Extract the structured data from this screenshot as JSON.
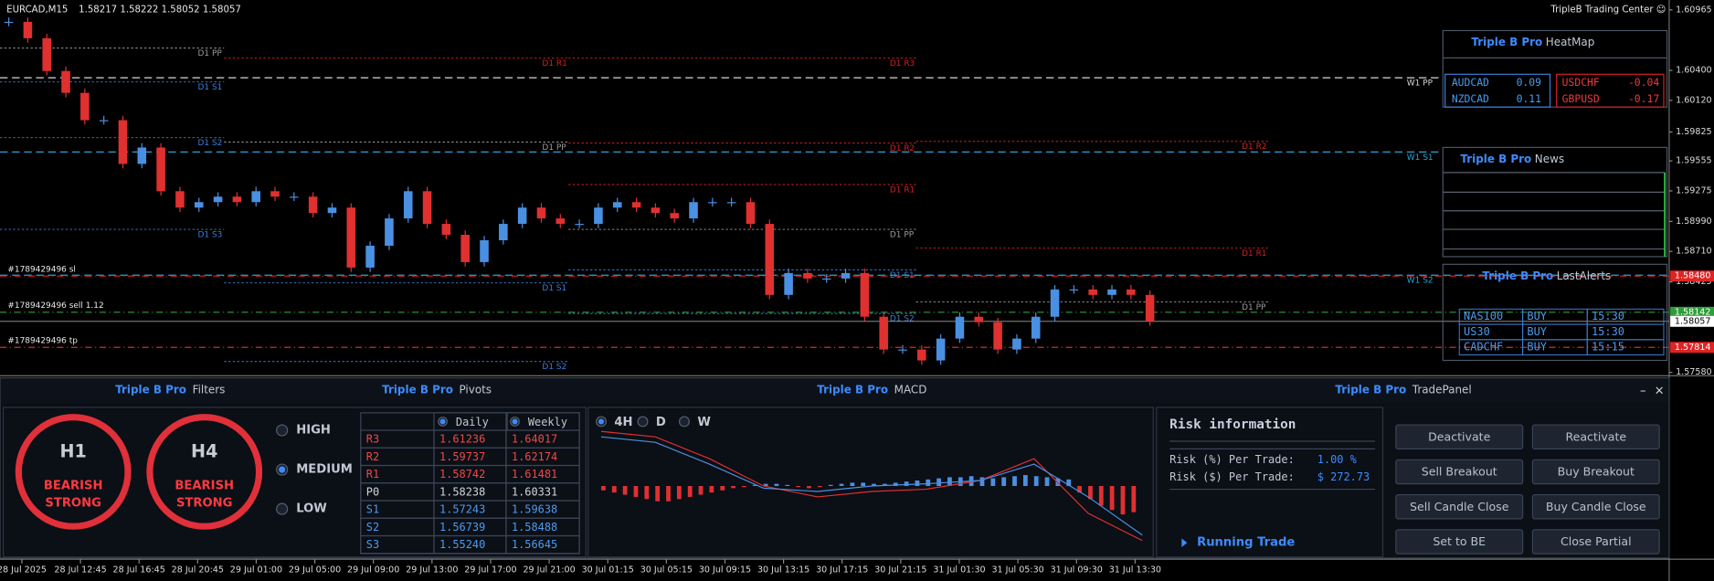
{
  "header": {
    "symbol": "EURCAD,M15",
    "ohlc": "1.58217 1.58222 1.58052 1.58057",
    "brand": "TripleB Trading Center ☺"
  },
  "price_axis": {
    "ylim": [
      1.5756,
      1.61057
    ],
    "ticks": [
      1.60965,
      {
        "value": 1.604,
        "label": "1.60400"
      },
      {
        "value": 1.6012,
        "label": "1.60120"
      },
      1.59825,
      1.59555,
      1.59275,
      {
        "value": 1.5899,
        "label": "1.58990"
      },
      {
        "value": 1.5871,
        "label": "1.58710"
      },
      1.58425,
      {
        "value": 1.5758,
        "label": "1.57580"
      }
    ],
    "tags": [
      {
        "value": 1.5848,
        "label": "1.58480",
        "color": "#e02424"
      },
      {
        "value": 1.58142,
        "label": "1.58142",
        "color": "#2e9e3a"
      },
      {
        "value": 1.58057,
        "label": "1.58057",
        "color": "#ffffff"
      },
      {
        "value": 1.57814,
        "label": "1.57814",
        "color": "#e02424"
      }
    ]
  },
  "time_axis": [
    "28 Jul 2025",
    "28 Jul 12:45",
    "28 Jul 16:45",
    "28 Jul 20:45",
    "29 Jul 01:00",
    "29 Jul 05:00",
    "29 Jul 09:00",
    "29 Jul 13:00",
    "29 Jul 17:00",
    "29 Jul 21:00",
    "30 Jul 01:15",
    "30 Jul 05:15",
    "30 Jul 09:15",
    "30 Jul 13:15",
    "30 Jul 17:15",
    "30 Jul 21:15",
    "31 Jul 01:30",
    "31 Jul 05:30",
    "31 Jul 09:30",
    "31 Jul 13:30"
  ],
  "daily_pivots": [
    [
      {
        "label": "D1 PP",
        "price": 1.60608,
        "color": "#9a9a9a"
      },
      {
        "label": "D1 S1",
        "price": 1.60292,
        "color": "#3d7fd8"
      },
      {
        "label": "D1 S2",
        "price": 1.59772,
        "color": "#3d7fd8"
      },
      {
        "label": "D1 S3",
        "price": 1.58916,
        "color": "#3d7fd8"
      }
    ],
    [
      {
        "label": "D1 R1",
        "price": 1.60516,
        "color": "#d42020"
      },
      {
        "label": "D1 PP",
        "price": 1.59731,
        "color": "#9a9a9a"
      },
      {
        "label": "D1 S1",
        "price": 1.58416,
        "color": "#3d7fd8"
      },
      {
        "label": "D1 S2",
        "price": 1.57682,
        "color": "#3d7fd8"
      }
    ],
    [
      {
        "label": "D1 R3",
        "price": 1.60516,
        "color": "#d42020"
      },
      {
        "label": "D1 R2",
        "price": 1.59721,
        "color": "#d42020"
      },
      {
        "label": "D1 R1",
        "price": 1.59334,
        "color": "#d42020"
      },
      {
        "label": "D1 PP",
        "price": 1.58916,
        "color": "#9a9a9a"
      },
      {
        "label": "D1 S1",
        "price": 1.58538,
        "color": "#3d7fd8"
      },
      {
        "label": "D1 S2",
        "price": 1.58131,
        "color": "#3d7fd8"
      }
    ],
    [
      {
        "label": "D1 R2",
        "price": 1.59737,
        "color": "#d42020"
      },
      {
        "label": "D1 R1",
        "price": 1.58742,
        "color": "#d42020"
      },
      {
        "label": "D1 PP",
        "price": 1.58238,
        "color": "#9a9a9a"
      }
    ]
  ],
  "weekly_pivots": [
    {
      "label": "W1 PP",
      "price": 1.60331,
      "color": "#d8d8d8"
    },
    {
      "label": "W1 S1",
      "price": 1.59638,
      "color": "#2aa3d8"
    },
    {
      "label": "W1 S2",
      "price": 1.58488,
      "color": "#2aa3d8"
    }
  ],
  "orders": [
    {
      "label": "#1789429496 sl",
      "price": 1.5848,
      "color": "#e02424"
    },
    {
      "label": "#1789429496 sell 1.12",
      "price": 1.58142,
      "color": "#2e9e3a"
    },
    {
      "label": "#1789429496 tp",
      "price": 1.57814,
      "color": "#e02424"
    }
  ],
  "current_price": 1.58057,
  "closes": [
    1.60853,
    1.607,
    1.60394,
    1.6019,
    1.59935,
    1.59935,
    1.59527,
    1.5968,
    1.59272,
    1.59119,
    1.5917,
    1.59221,
    1.5917,
    1.59272,
    1.59221,
    1.59221,
    1.59068,
    1.59119,
    1.58559,
    1.58763,
    1.59018,
    1.59272,
    1.58967,
    1.58865,
    1.5861,
    1.58814,
    1.58967,
    1.59119,
    1.59018,
    1.58967,
    1.58967,
    1.59119,
    1.5917,
    1.59119,
    1.59068,
    1.59018,
    1.5917,
    1.5917,
    1.5917,
    1.58967,
    1.58304,
    1.58508,
    1.58457,
    1.58457,
    1.58508,
    1.581,
    1.57794,
    1.57794,
    1.57692,
    1.57896,
    1.581,
    1.58049,
    1.57794,
    1.57896,
    1.581,
    1.58355,
    1.58355,
    1.58304,
    1.58355,
    1.58304,
    1.58057
  ],
  "heatmap": {
    "brand": "Triple B Pro",
    "title": "HeatMap",
    "positive": [
      [
        "AUDCAD",
        "0.09"
      ],
      [
        "NZDCAD",
        "0.11"
      ]
    ],
    "negative": [
      [
        "USDCHF",
        "-0.04"
      ],
      [
        "GBPUSD",
        "-0.17"
      ]
    ]
  },
  "news": {
    "brand": "Triple B Pro",
    "title": "News"
  },
  "alerts": {
    "brand": "Triple B Pro",
    "title": "LastAlerts",
    "rows": [
      [
        "NAS100",
        "BUY",
        "15:30"
      ],
      [
        "US30",
        "BUY",
        "15:30"
      ],
      [
        "CADCHF",
        "BUY",
        "15:15"
      ]
    ]
  },
  "panel_headers": [
    {
      "brand": "Triple B Pro",
      "title": "Filters"
    },
    {
      "brand": "Triple B Pro",
      "title": "Pivots"
    },
    {
      "brand": "Triple B Pro",
      "title": "MACD"
    },
    {
      "brand": "Triple B Pro",
      "title": "TradePanel"
    }
  ],
  "window_buttons": [
    "–",
    "×"
  ],
  "filters": {
    "rings": [
      {
        "timeframe": "H1",
        "line1": "BEARISH",
        "line2": "STRONG"
      },
      {
        "timeframe": "H4",
        "line1": "BEARISH",
        "line2": "STRONG"
      }
    ],
    "levels": [
      "HIGH",
      "MEDIUM",
      "LOW"
    ],
    "selected": 1
  },
  "pivots": {
    "columns": [
      "Daily",
      "Weekly"
    ],
    "rows": [
      [
        "R3",
        "1.61236",
        "1.64017"
      ],
      [
        "R2",
        "1.59737",
        "1.62174"
      ],
      [
        "R1",
        "1.58742",
        "1.61481"
      ],
      [
        "P0",
        "1.58238",
        "1.60331"
      ],
      [
        "S1",
        "1.57243",
        "1.59638"
      ],
      [
        "S2",
        "1.56739",
        "1.58488"
      ],
      [
        "S3",
        "1.55240",
        "1.56645"
      ]
    ]
  },
  "macd": {
    "timeframes": [
      "4H",
      "D",
      "W"
    ],
    "selected": 0,
    "histogram": [
      -4,
      -6,
      -8,
      -10,
      -12,
      -14,
      -14,
      -12,
      -10,
      -8,
      -6,
      -4,
      -2,
      -1,
      1,
      2,
      2,
      1,
      -1,
      -2,
      -1,
      1,
      2,
      3,
      3,
      2,
      2,
      3,
      4,
      5,
      6,
      7,
      8,
      8,
      9,
      8,
      7,
      8,
      9,
      10,
      9,
      8,
      7,
      6,
      -6,
      -12,
      -18,
      -22,
      -26,
      -24
    ],
    "macd_line": [
      50,
      45,
      25,
      0,
      -10,
      -5,
      -3,
      5,
      25,
      -25,
      -50
    ],
    "signal_line": [
      45,
      40,
      20,
      -2,
      -5,
      0,
      2,
      5,
      20,
      -10,
      -45
    ]
  },
  "risk": {
    "title": "Risk information",
    "rows": [
      [
        "Risk (%) Per Trade:",
        "1.00 %"
      ],
      [
        "Risk ($) Per Trade:",
        "$ 272.73"
      ]
    ],
    "running": "Running Trade"
  },
  "buttons": [
    [
      "Deactivate",
      "Reactivate"
    ],
    [
      "Sell Breakout",
      "Buy Breakout"
    ],
    [
      "Sell Candle Close",
      "Buy Candle Close"
    ],
    [
      "Set to BE",
      "Close Partial"
    ]
  ]
}
